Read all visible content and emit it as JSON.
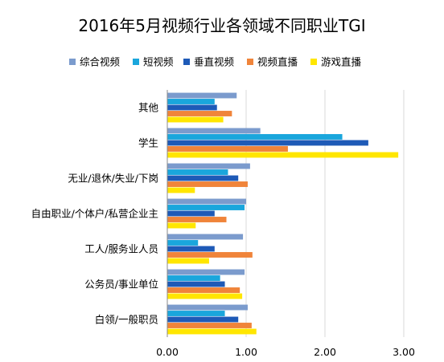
{
  "chart_data": {
    "type": "bar",
    "orientation": "horizontal",
    "title": "2016年5月视频行业各领域不同职业TGI",
    "categories": [
      "其他",
      "学生",
      "无业/退休/失业/下岗",
      "自由职业/个体户/私营企业主",
      "工人/服务业人员",
      "公务员/事业单位",
      "白领/一般职员"
    ],
    "series": [
      {
        "name": "综合视频",
        "color": "#7b9bcd",
        "values": [
          0.88,
          1.18,
          1.05,
          1.0,
          0.96,
          0.98,
          1.02
        ]
      },
      {
        "name": "短视频",
        "color": "#1aa6dc",
        "values": [
          0.6,
          2.22,
          0.77,
          0.98,
          0.39,
          0.67,
          0.73
        ]
      },
      {
        "name": "垂直视频",
        "color": "#1e5ab7",
        "values": [
          0.63,
          2.55,
          0.9,
          0.6,
          0.6,
          0.73,
          0.9
        ]
      },
      {
        "name": "视频直播",
        "color": "#f0843a",
        "values": [
          0.82,
          1.53,
          1.02,
          0.75,
          1.08,
          0.92,
          1.07
        ]
      },
      {
        "name": "游戏直播",
        "color": "#ffe600",
        "values": [
          0.71,
          2.93,
          0.35,
          0.36,
          0.53,
          0.95,
          1.13
        ]
      }
    ],
    "xlim": [
      0,
      3
    ],
    "xticks": [
      "0.00",
      "1.00",
      "2.00",
      "3.00"
    ],
    "grid": true,
    "legend_position": "top"
  }
}
